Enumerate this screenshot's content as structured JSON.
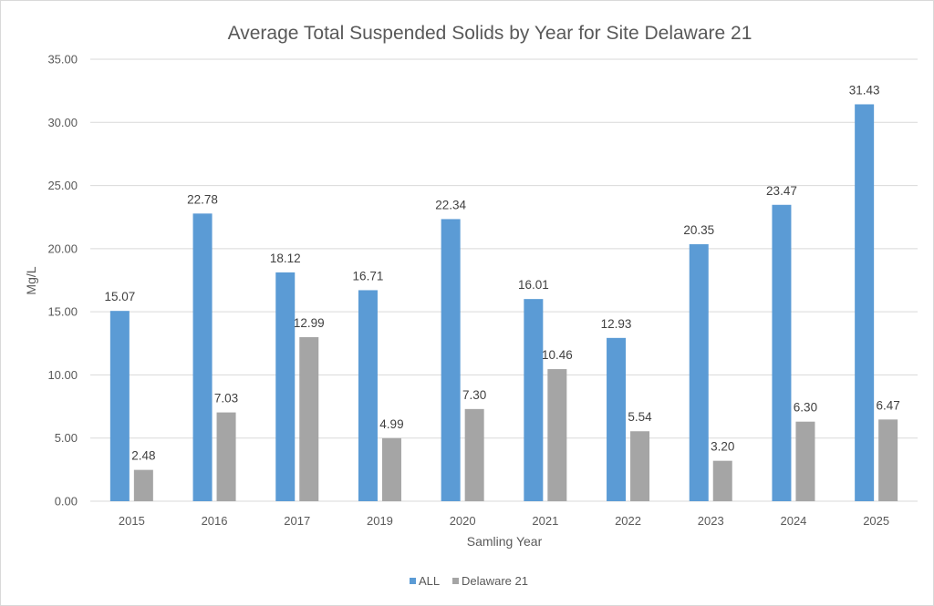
{
  "chart_data": {
    "type": "bar",
    "title": "Average Total Suspended Solids by Year for Site Delaware 21",
    "xlabel": "Samling Year",
    "ylabel": "Mg/L",
    "ylim": [
      0,
      35
    ],
    "ytick_step": 5,
    "ytick_labels": [
      "0.00",
      "5.00",
      "10.00",
      "15.00",
      "20.00",
      "25.00",
      "30.00",
      "35.00"
    ],
    "grid": true,
    "legend_position": "bottom",
    "categories": [
      "2015",
      "2016",
      "2017",
      "2019",
      "2020",
      "2021",
      "2022",
      "2023",
      "2024",
      "2025"
    ],
    "series": [
      {
        "name": "ALL",
        "color": "#5b9bd5",
        "values": [
          15.07,
          22.78,
          18.12,
          16.71,
          22.34,
          16.01,
          12.93,
          20.35,
          23.47,
          31.43
        ],
        "labels": [
          "15.07",
          "22.78",
          "18.12",
          "16.71",
          "22.34",
          "16.01",
          "12.93",
          "20.35",
          "23.47",
          "31.43"
        ]
      },
      {
        "name": "Delaware 21",
        "color": "#a5a5a5",
        "values": [
          2.48,
          7.03,
          12.99,
          4.99,
          7.3,
          10.46,
          5.54,
          3.2,
          6.3,
          6.47
        ],
        "labels": [
          "2.48",
          "7.03",
          "12.99",
          "4.99",
          "7.30",
          "10.46",
          "5.54",
          "3.20",
          "6.30",
          "6.47"
        ]
      }
    ]
  }
}
